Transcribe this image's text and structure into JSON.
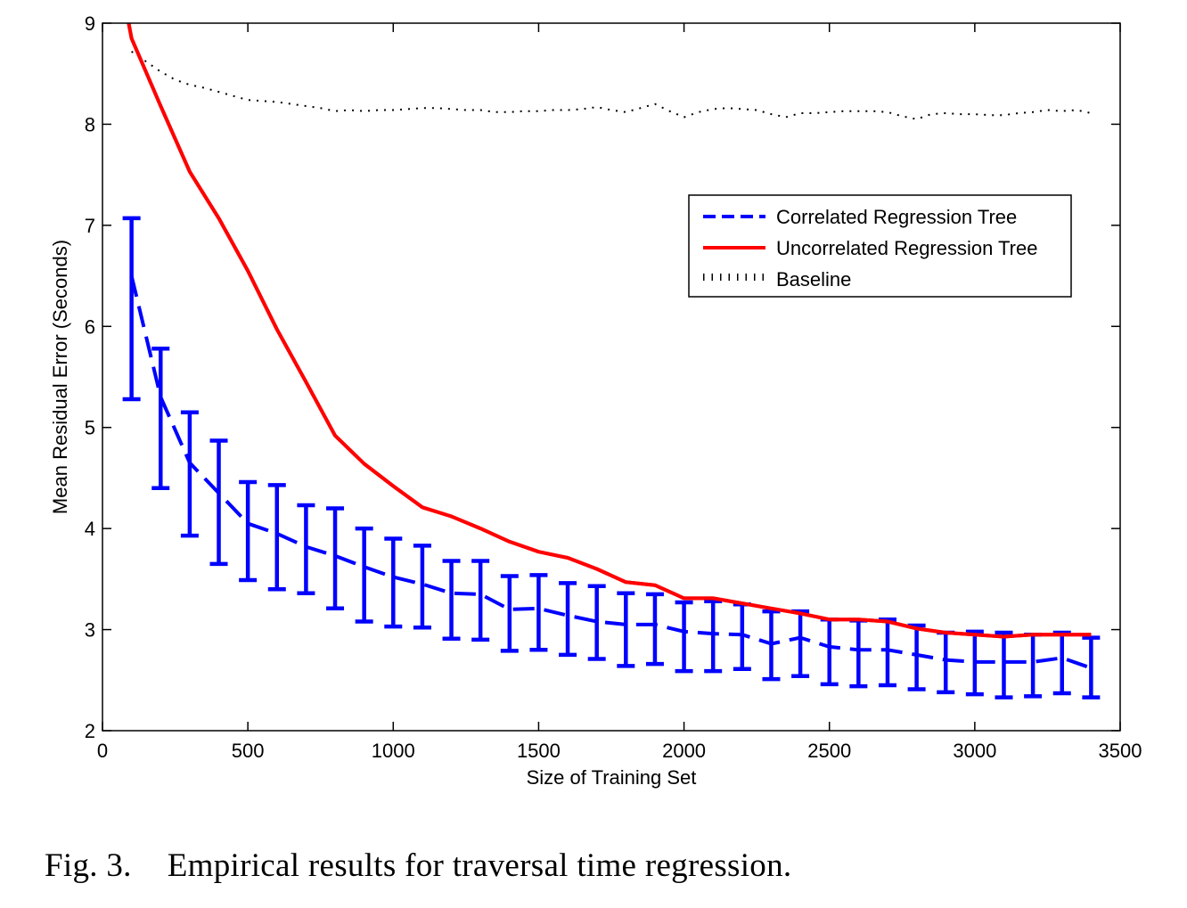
{
  "chart_data": {
    "type": "line",
    "title": "",
    "xlabel": "Size of Training Set",
    "ylabel": "Mean Residual Error (Seconds)",
    "xlim": [
      0,
      3500
    ],
    "ylim": [
      2,
      9
    ],
    "xticks": [
      0,
      500,
      1000,
      1500,
      2000,
      2500,
      3000,
      3500
    ],
    "yticks": [
      2,
      3,
      4,
      5,
      6,
      7,
      8,
      9
    ],
    "grid": false,
    "legend_position": "upper-right",
    "series": [
      {
        "name": "Correlated Regression Tree",
        "style": "dashed",
        "color": "#0000ff",
        "x": [
          100,
          200,
          300,
          400,
          500,
          600,
          700,
          800,
          900,
          1000,
          1100,
          1200,
          1300,
          1400,
          1500,
          1600,
          1700,
          1800,
          1900,
          2000,
          2100,
          2200,
          2300,
          2400,
          2500,
          2600,
          2700,
          2800,
          2900,
          3000,
          3100,
          3200,
          3300,
          3400
        ],
        "y": [
          6.5,
          5.3,
          4.65,
          4.35,
          4.05,
          3.95,
          3.82,
          3.73,
          3.62,
          3.52,
          3.45,
          3.36,
          3.35,
          3.2,
          3.21,
          3.14,
          3.08,
          3.05,
          3.05,
          2.98,
          2.96,
          2.95,
          2.86,
          2.92,
          2.83,
          2.8,
          2.8,
          2.75,
          2.7,
          2.68,
          2.68,
          2.68,
          2.72,
          2.62
        ],
        "error_low": [
          5.28,
          4.4,
          3.93,
          3.65,
          3.49,
          3.4,
          3.36,
          3.21,
          3.08,
          3.03,
          3.02,
          2.91,
          2.9,
          2.79,
          2.8,
          2.75,
          2.71,
          2.64,
          2.66,
          2.59,
          2.59,
          2.61,
          2.51,
          2.54,
          2.46,
          2.44,
          2.45,
          2.41,
          2.38,
          2.36,
          2.33,
          2.34,
          2.37,
          2.33
        ],
        "error_high": [
          7.07,
          5.78,
          5.15,
          4.87,
          4.46,
          4.43,
          4.23,
          4.2,
          4.0,
          3.9,
          3.83,
          3.68,
          3.68,
          3.53,
          3.54,
          3.46,
          3.43,
          3.36,
          3.35,
          3.27,
          3.28,
          3.25,
          3.18,
          3.18,
          3.1,
          3.09,
          3.1,
          3.04,
          2.97,
          2.98,
          2.97,
          2.95,
          2.97,
          2.92
        ]
      },
      {
        "name": "Uncorrelated Regression Tree",
        "style": "solid",
        "color": "#ff0000",
        "x": [
          90,
          100,
          200,
          300,
          400,
          500,
          600,
          700,
          800,
          900,
          1000,
          1100,
          1200,
          1300,
          1400,
          1500,
          1600,
          1700,
          1800,
          1900,
          2000,
          2100,
          2200,
          2300,
          2400,
          2500,
          2600,
          2700,
          2800,
          2900,
          3000,
          3100,
          3200,
          3300,
          3400
        ],
        "y": [
          9.0,
          8.85,
          8.18,
          7.53,
          7.07,
          6.55,
          5.97,
          5.45,
          4.92,
          4.64,
          4.42,
          4.21,
          4.12,
          4.0,
          3.87,
          3.77,
          3.71,
          3.6,
          3.47,
          3.44,
          3.31,
          3.31,
          3.26,
          3.21,
          3.16,
          3.1,
          3.1,
          3.08,
          3.01,
          2.97,
          2.95,
          2.93,
          2.95,
          2.95,
          2.95
        ]
      },
      {
        "name": "Baseline",
        "style": "dotted",
        "color": "#000000",
        "x": [
          100,
          150,
          200,
          250,
          300,
          350,
          400,
          450,
          500,
          550,
          600,
          650,
          700,
          750,
          800,
          850,
          900,
          950,
          1000,
          1050,
          1100,
          1150,
          1200,
          1250,
          1300,
          1350,
          1400,
          1450,
          1500,
          1550,
          1600,
          1650,
          1700,
          1750,
          1800,
          1850,
          1900,
          1950,
          2000,
          2050,
          2100,
          2150,
          2200,
          2250,
          2300,
          2350,
          2400,
          2450,
          2500,
          2550,
          2600,
          2650,
          2700,
          2750,
          2800,
          2850,
          2900,
          2950,
          3000,
          3050,
          3100,
          3150,
          3200,
          3250,
          3300,
          3350,
          3400
        ],
        "y": [
          8.72,
          8.62,
          8.52,
          8.44,
          8.39,
          8.36,
          8.32,
          8.28,
          8.24,
          8.23,
          8.22,
          8.2,
          8.18,
          8.16,
          8.13,
          8.14,
          8.13,
          8.14,
          8.14,
          8.15,
          8.16,
          8.16,
          8.15,
          8.14,
          8.14,
          8.12,
          8.12,
          8.13,
          8.13,
          8.14,
          8.14,
          8.15,
          8.17,
          8.14,
          8.12,
          8.16,
          8.2,
          8.13,
          8.07,
          8.12,
          8.15,
          8.16,
          8.15,
          8.14,
          8.1,
          8.07,
          8.11,
          8.11,
          8.12,
          8.13,
          8.13,
          8.13,
          8.12,
          8.08,
          8.05,
          8.1,
          8.11,
          8.1,
          8.1,
          8.09,
          8.09,
          8.11,
          8.12,
          8.14,
          8.13,
          8.14,
          8.11
        ]
      }
    ]
  },
  "caption": {
    "fig_number": "Fig. 3.",
    "text": "Empirical results for traversal time regression."
  }
}
